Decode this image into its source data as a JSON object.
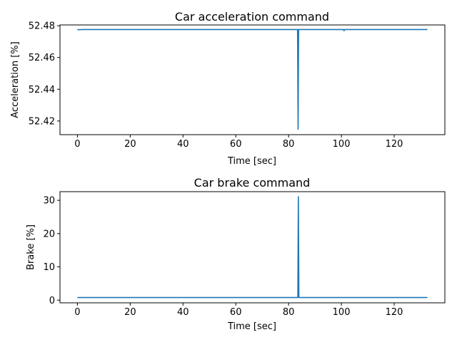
{
  "chart_data": [
    {
      "type": "line",
      "title": "Car acceleration command",
      "xlabel": "Time [sec]",
      "ylabel": "Acceleration [%]",
      "xlim": [
        -6.6,
        139.2
      ],
      "ylim": [
        52.4114,
        52.4805
      ],
      "xticks": [
        0,
        20,
        40,
        60,
        80,
        100,
        120
      ],
      "yticks": [
        52.42,
        52.44,
        52.46,
        52.48
      ],
      "ytick_labels": [
        "52.42",
        "52.44",
        "52.46",
        "52.48"
      ],
      "grid": false,
      "color": "#1f77b4",
      "series": [
        {
          "x": [
            0,
            0.6,
            2,
            83.4,
            83.6,
            83.8,
            84.0,
            100.8,
            101.0,
            101.2,
            132.6
          ],
          "y": [
            52.4776,
            52.4775,
            52.4776,
            52.4776,
            52.4148,
            52.4776,
            52.4776,
            52.4776,
            52.4768,
            52.4776,
            52.4776
          ]
        }
      ]
    },
    {
      "type": "line",
      "title": "Car brake command",
      "xlabel": "Time [sec]",
      "ylabel": "Brake [%]",
      "xlim": [
        -6.6,
        139.2
      ],
      "ylim": [
        -0.8,
        32.6
      ],
      "xticks": [
        0,
        20,
        40,
        60,
        80,
        100,
        120
      ],
      "yticks": [
        0,
        10,
        20,
        30
      ],
      "ytick_labels": [
        "0",
        "10",
        "20",
        "30"
      ],
      "grid": false,
      "color": "#1f77b4",
      "series": [
        {
          "x": [
            0,
            83.5,
            83.7,
            83.9,
            132.6
          ],
          "y": [
            0.8,
            0.8,
            31.1,
            0.8,
            0.8
          ]
        }
      ]
    }
  ]
}
